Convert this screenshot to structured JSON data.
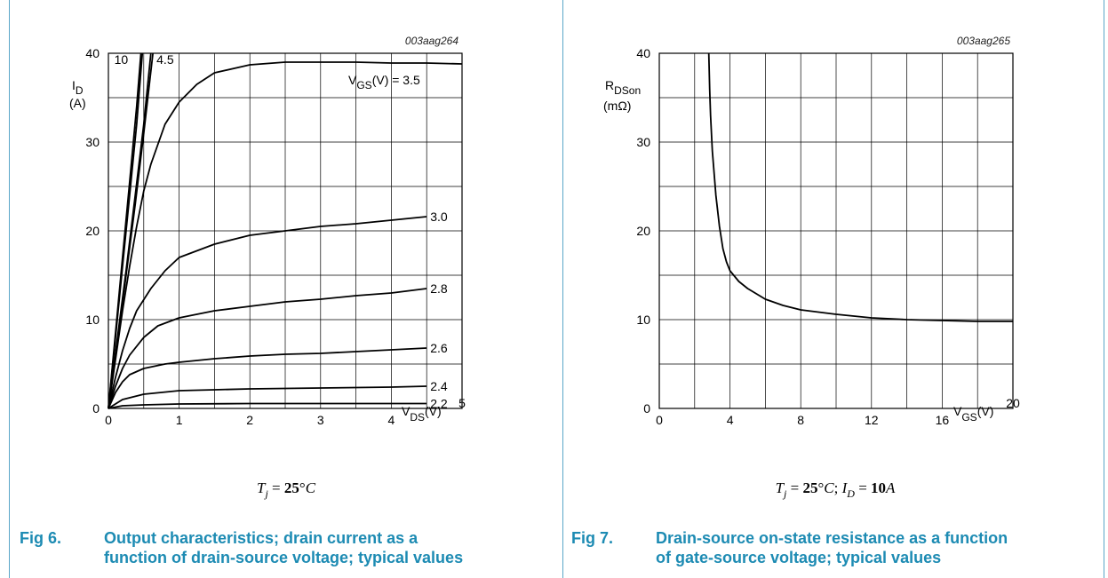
{
  "colors": {
    "accent": "#1d8bb3",
    "frame": "#5aa6c8",
    "curve": "#000000",
    "grid": "#000000"
  },
  "chart_data": [
    {
      "type": "line",
      "code": "003aag264",
      "ylabel_main": "I",
      "ylabel_sub": "D",
      "yunit": "(A)",
      "xlabel_main": "V",
      "xlabel_sub": "DS",
      "xunit": "(V)",
      "xlim": [
        0,
        5
      ],
      "ylim": [
        0,
        40
      ],
      "xticks": [
        "0",
        "1",
        "2",
        "3",
        "4",
        "5"
      ],
      "yticks": [
        "0",
        "10",
        "20",
        "30",
        "40"
      ],
      "grid": true,
      "condition": "T_j = 25°C",
      "legend_main": "V",
      "legend_sub": "GS",
      "legend_rest": "(V) = 3.5",
      "series": [
        {
          "name": "10",
          "x": [
            0,
            0.1,
            0.2,
            0.3,
            0.4,
            0.46
          ],
          "y": [
            0,
            8.5,
            17,
            25.5,
            34,
            40
          ]
        },
        {
          "name": "",
          "x": [
            0,
            0.1,
            0.2,
            0.3,
            0.4,
            0.48
          ],
          "y": [
            0,
            8,
            16,
            24,
            32,
            40
          ]
        },
        {
          "name": "4.5",
          "x": [
            0,
            0.12,
            0.25,
            0.38,
            0.5,
            0.63
          ],
          "y": [
            0,
            7,
            15,
            23,
            31,
            40
          ]
        },
        {
          "name": "",
          "x": [
            0,
            0.12,
            0.25,
            0.38,
            0.5,
            0.6
          ],
          "y": [
            0,
            7.5,
            15.5,
            24,
            32,
            40
          ]
        },
        {
          "name": "3.5",
          "x": [
            0,
            0.1,
            0.2,
            0.3,
            0.4,
            0.5,
            0.6,
            0.8,
            1.0,
            1.25,
            1.5,
            2.0,
            2.5,
            3.0,
            3.5,
            4.0,
            4.5,
            5.0
          ],
          "y": [
            0,
            5.5,
            11,
            16,
            20.5,
            24.5,
            27.5,
            32,
            34.5,
            36.5,
            37.8,
            38.7,
            39,
            39,
            39,
            38.9,
            38.9,
            38.8
          ]
        },
        {
          "name": "3.0",
          "x": [
            0,
            0.1,
            0.2,
            0.3,
            0.4,
            0.6,
            0.8,
            1.0,
            1.5,
            2.0,
            2.5,
            3.0,
            3.5,
            4.0,
            4.5
          ],
          "y": [
            0,
            3.5,
            6.5,
            9,
            11,
            13.5,
            15.5,
            17,
            18.5,
            19.5,
            20,
            20.5,
            20.8,
            21.2,
            21.6
          ]
        },
        {
          "name": "2.8",
          "x": [
            0,
            0.1,
            0.2,
            0.3,
            0.5,
            0.7,
            1.0,
            1.5,
            2.0,
            2.5,
            3.0,
            3.5,
            4.0,
            4.5
          ],
          "y": [
            0,
            2.5,
            4.5,
            6,
            8,
            9.3,
            10.2,
            11,
            11.5,
            12,
            12.3,
            12.7,
            13,
            13.5
          ]
        },
        {
          "name": "2.6",
          "x": [
            0,
            0.1,
            0.2,
            0.3,
            0.5,
            0.8,
            1.0,
            1.5,
            2.0,
            2.5,
            3.0,
            3.5,
            4.0,
            4.5
          ],
          "y": [
            0,
            1.8,
            3,
            3.8,
            4.5,
            5,
            5.2,
            5.6,
            5.9,
            6.1,
            6.2,
            6.4,
            6.6,
            6.8
          ]
        },
        {
          "name": "2.4",
          "x": [
            0,
            0.2,
            0.5,
            1.0,
            1.5,
            2.0,
            3.0,
            4.0,
            4.5
          ],
          "y": [
            0,
            1,
            1.6,
            2,
            2.1,
            2.2,
            2.3,
            2.4,
            2.5
          ]
        },
        {
          "name": "2.2",
          "x": [
            0,
            0.2,
            0.5,
            1.0,
            2.0,
            3.0,
            4.0,
            4.5
          ],
          "y": [
            0,
            0.3,
            0.4,
            0.5,
            0.55,
            0.55,
            0.55,
            0.55
          ]
        }
      ]
    },
    {
      "type": "line",
      "code": "003aag265",
      "ylabel_main": "R",
      "ylabel_sub": "DSon",
      "yunit": "(mΩ)",
      "xlabel_main": "V",
      "xlabel_sub": "GS",
      "xunit": "(V)",
      "xlim": [
        0,
        20
      ],
      "ylim": [
        0,
        40
      ],
      "xticks": [
        "0",
        "4",
        "8",
        "12",
        "16",
        "20"
      ],
      "yticks": [
        "0",
        "10",
        "20",
        "30",
        "40"
      ],
      "grid": true,
      "condition": "T_j = 25°C; I_D = 10A",
      "series": [
        {
          "name": "",
          "x": [
            2.8,
            2.85,
            2.9,
            3.0,
            3.1,
            3.2,
            3.4,
            3.6,
            3.8,
            4.0,
            4.5,
            5.0,
            6.0,
            7.0,
            8.0,
            10.0,
            12.0,
            14.0,
            16.0,
            18.0,
            20.0
          ],
          "y": [
            40,
            36,
            33,
            29,
            26.5,
            24,
            20.5,
            18,
            16.5,
            15.5,
            14.3,
            13.5,
            12.3,
            11.6,
            11.1,
            10.6,
            10.2,
            10.0,
            9.9,
            9.8,
            9.8
          ]
        }
      ]
    }
  ],
  "figures": [
    {
      "number": "Fig 6.",
      "line1": "Output characteristics; drain current as a",
      "line2": "function of drain-source voltage; typical values"
    },
    {
      "number": "Fig 7.",
      "line1": "Drain-source on-state resistance as a function",
      "line2": "of gate-source voltage; typical values"
    }
  ]
}
